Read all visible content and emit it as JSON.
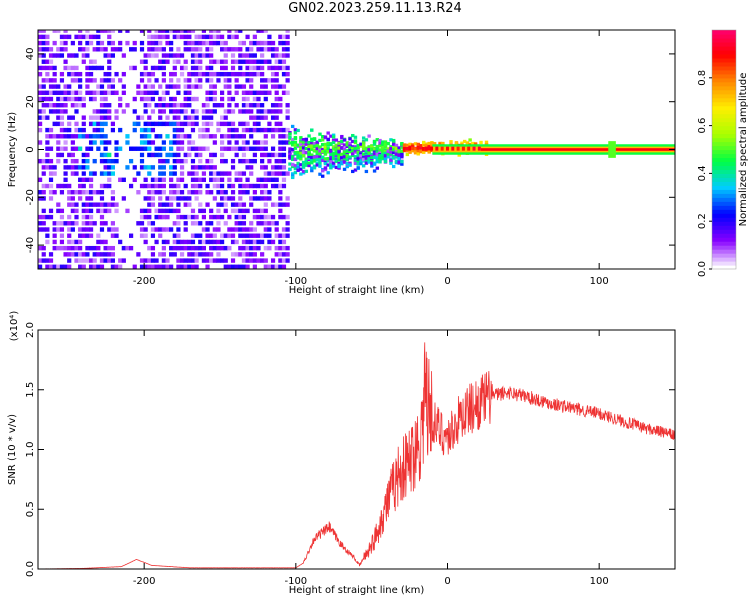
{
  "chart_data": [
    {
      "type": "heatmap",
      "title": "GN02.2023.259.11.13.R24",
      "xlabel": "Height of straight line (km)",
      "ylabel": "Frequency (Hz)",
      "xlim": [
        -270,
        150
      ],
      "ylim": [
        -50,
        50
      ],
      "xticks": [
        -200,
        -100,
        0,
        100
      ],
      "yticks": [
        -40,
        -20,
        0,
        20,
        40
      ],
      "colorbar": {
        "label": "Normalized spectral amplitude",
        "range": [
          0,
          1
        ],
        "ticks": [
          "0.0",
          "0.2",
          "0.4",
          "0.6",
          "0.8"
        ],
        "colors": [
          "#ffffff",
          "#8800ff",
          "#0000ff",
          "#00ccff",
          "#00ff44",
          "#aaff00",
          "#ffee00",
          "#ff8800",
          "#ff0000",
          "#ff0077"
        ]
      },
      "regions": [
        {
          "x": [
            -270,
            -105
          ],
          "freq": [
            -50,
            50
          ],
          "amplitude": 0.15,
          "pattern": "broadband noise"
        },
        {
          "x": [
            -105,
            -30
          ],
          "freq": [
            -14,
            14
          ],
          "amplitude": 0.35,
          "pattern": "narrowing band near 0 Hz"
        },
        {
          "x": [
            -30,
            25
          ],
          "freq": [
            -4,
            4
          ],
          "amplitude": 0.8,
          "pattern": "narrow line"
        },
        {
          "x": [
            25,
            150
          ],
          "freq": [
            -1,
            1
          ],
          "amplitude": 1.0,
          "pattern": "single line at 0 Hz"
        }
      ]
    },
    {
      "type": "line",
      "xlabel": "Height of straight line (km)",
      "ylabel": "SNR (10 * v/v)",
      "yscale_label": "(x10⁴)",
      "color": "#ee3333",
      "xlim": [
        -270,
        150
      ],
      "ylim": [
        0,
        2.0
      ],
      "xticks": [
        -200,
        -100,
        0,
        100
      ],
      "yticks": [
        "0.0",
        "0.5",
        "1.0",
        "1.5",
        "2.0"
      ],
      "x": [
        -270,
        -240,
        -215,
        -205,
        -195,
        -170,
        -130,
        -100,
        -95,
        -88,
        -78,
        -70,
        -62,
        -58,
        -48,
        -40,
        -32,
        -25,
        -18,
        -14,
        -8,
        0,
        10,
        22,
        30,
        40,
        50,
        70,
        100,
        130,
        150
      ],
      "y": [
        0.0,
        0.005,
        0.02,
        0.08,
        0.03,
        0.01,
        0.01,
        0.01,
        0.05,
        0.25,
        0.35,
        0.2,
        0.1,
        0.03,
        0.25,
        0.55,
        0.8,
        0.9,
        1.1,
        1.4,
        1.2,
        1.1,
        1.3,
        1.4,
        1.45,
        1.48,
        1.45,
        1.38,
        1.3,
        1.18,
        1.12
      ]
    }
  ]
}
